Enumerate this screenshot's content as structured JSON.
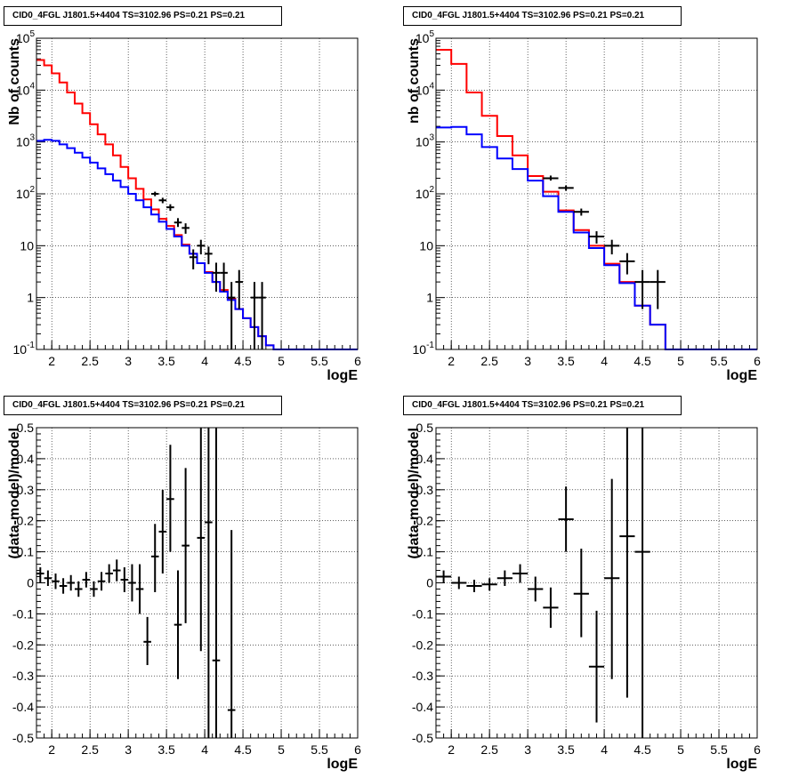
{
  "window": {
    "panel_title": "CID0_4FGL J1801.5+4404 TS=3102.96 PS=0.21 PS=0.21"
  },
  "colors": {
    "total_model": "#ff0000",
    "source_model": "#0000ff",
    "data": "#000000",
    "grid": "#000000"
  },
  "chart_data": [
    {
      "type": "line",
      "title": "CID0_4FGL J1801.5+4404 TS=3102.96 PS=0.21 PS=0.21",
      "xlabel": "logE",
      "ylabel": "Nb of counts",
      "xlim": [
        1.8,
        6.0
      ],
      "ylim": [
        0.1,
        100000
      ],
      "yscale": "log",
      "grid": true,
      "x_ticks": [
        2,
        2.5,
        3,
        3.5,
        4,
        4.5,
        5,
        5.5,
        6
      ],
      "y_ticks": [
        {
          "v": 0.1,
          "label": "10^-1"
        },
        {
          "v": 1,
          "label": "1"
        },
        {
          "v": 10,
          "label": "10"
        },
        {
          "v": 100,
          "label": "10^2"
        },
        {
          "v": 1000,
          "label": "10^3"
        },
        {
          "v": 10000,
          "label": "10^4"
        },
        {
          "v": 100000,
          "label": "10^5"
        }
      ],
      "bin_edges": [
        1.8,
        1.9,
        2.0,
        2.1,
        2.2,
        2.3,
        2.4,
        2.5,
        2.6,
        2.7,
        2.8,
        2.9,
        3.0,
        3.1,
        3.2,
        3.3,
        3.4,
        3.5,
        3.6,
        3.7,
        3.8,
        3.9,
        4.0,
        4.1,
        4.2,
        4.3,
        4.4,
        4.5,
        4.6,
        4.7,
        4.8,
        4.9,
        5.0,
        5.1,
        6.0
      ],
      "series": [
        {
          "role": "total_model",
          "values": [
            38000,
            30000,
            21000,
            14000,
            9000,
            5500,
            3600,
            2200,
            1400,
            900,
            550,
            330,
            200,
            125,
            78,
            50,
            33,
            24,
            16,
            10.5,
            7,
            4.6,
            3.1,
            2.0,
            1.4,
            0.95,
            0.6,
            0.4,
            0.27,
            0.18,
            0.12,
            0.1,
            0.1,
            0.1
          ]
        },
        {
          "role": "source_model",
          "values": [
            1050,
            1100,
            1050,
            900,
            760,
            620,
            500,
            400,
            310,
            240,
            180,
            135,
            100,
            75,
            55,
            40,
            29,
            21,
            15,
            10,
            7,
            4.6,
            3.0,
            2.0,
            1.3,
            0.9,
            0.6,
            0.4,
            0.27,
            0.18,
            0.12,
            0.1,
            0.1,
            0.1
          ]
        },
        {
          "role": "data",
          "points": [
            {
              "x": 3.35,
              "y": 100,
              "xerr": 0.05,
              "ylo": 90,
              "yhi": 110
            },
            {
              "x": 3.45,
              "y": 75,
              "xerr": 0.05,
              "ylo": 66,
              "yhi": 84
            },
            {
              "x": 3.55,
              "y": 55,
              "xerr": 0.05,
              "ylo": 47,
              "yhi": 63
            },
            {
              "x": 3.65,
              "y": 28,
              "xerr": 0.05,
              "ylo": 23,
              "yhi": 34
            },
            {
              "x": 3.75,
              "y": 22,
              "xerr": 0.05,
              "ylo": 17,
              "yhi": 27
            },
            {
              "x": 3.85,
              "y": 6,
              "xerr": 0.05,
              "ylo": 3.5,
              "yhi": 8.5
            },
            {
              "x": 3.95,
              "y": 10,
              "xerr": 0.05,
              "ylo": 6.8,
              "yhi": 13
            },
            {
              "x": 4.05,
              "y": 7,
              "xerr": 0.05,
              "ylo": 4.4,
              "yhi": 9.6
            },
            {
              "x": 4.15,
              "y": 3,
              "xerr": 0.05,
              "ylo": 1.3,
              "yhi": 4.7
            },
            {
              "x": 4.25,
              "y": 3,
              "xerr": 0.05,
              "ylo": 1.3,
              "yhi": 4.7
            },
            {
              "x": 4.35,
              "y": 1,
              "xerr": 0.05,
              "ylo": 0.1,
              "yhi": 2.0
            },
            {
              "x": 4.45,
              "y": 2,
              "xerr": 0.05,
              "ylo": 0.6,
              "yhi": 3.4
            },
            {
              "x": 4.65,
              "y": 1,
              "xerr": 0.05,
              "ylo": 0.1,
              "yhi": 2.0
            },
            {
              "x": 4.75,
              "y": 1,
              "xerr": 0.05,
              "ylo": 0.1,
              "yhi": 2.0
            }
          ]
        }
      ]
    },
    {
      "type": "line",
      "title": "CID0_4FGL J1801.5+4404 TS=3102.96 PS=0.21 PS=0.21",
      "xlabel": "logE",
      "ylabel": "nb of counts",
      "xlim": [
        1.8,
        6.0
      ],
      "ylim": [
        0.1,
        100000
      ],
      "yscale": "log",
      "grid": true,
      "x_ticks": [
        2,
        2.5,
        3,
        3.5,
        4,
        4.5,
        5,
        5.5,
        6
      ],
      "y_ticks": [
        {
          "v": 0.1,
          "label": "10^-1"
        },
        {
          "v": 1,
          "label": "1"
        },
        {
          "v": 10,
          "label": "10"
        },
        {
          "v": 100,
          "label": "10^2"
        },
        {
          "v": 1000,
          "label": "10^3"
        },
        {
          "v": 10000,
          "label": "10^4"
        },
        {
          "v": 100000,
          "label": "10^5"
        }
      ],
      "bin_edges": [
        1.8,
        2.0,
        2.2,
        2.4,
        2.6,
        2.8,
        3.0,
        3.2,
        3.4,
        3.6,
        3.8,
        4.0,
        4.2,
        4.4,
        4.6,
        4.8,
        5.0,
        6.0
      ],
      "series": [
        {
          "role": "total_model",
          "values": [
            60000,
            32000,
            9000,
            3200,
            1300,
            550,
            220,
            110,
            48,
            20,
            10,
            4.5,
            2,
            0.7,
            0.3,
            0.1,
            0.1
          ]
        },
        {
          "role": "source_model",
          "values": [
            1900,
            1950,
            1400,
            800,
            480,
            300,
            180,
            90,
            45,
            18,
            9,
            4.2,
            1.9,
            0.7,
            0.3,
            0.1,
            0.1
          ]
        },
        {
          "role": "data",
          "points": [
            {
              "x": 3.3,
              "y": 200,
              "xerr": 0.1,
              "ylo": 180,
              "yhi": 225
            },
            {
              "x": 3.5,
              "y": 130,
              "xerr": 0.1,
              "ylo": 115,
              "yhi": 145
            },
            {
              "x": 3.7,
              "y": 45,
              "xerr": 0.1,
              "ylo": 38,
              "yhi": 52
            },
            {
              "x": 3.9,
              "y": 15,
              "xerr": 0.1,
              "ylo": 11,
              "yhi": 19
            },
            {
              "x": 4.1,
              "y": 10,
              "xerr": 0.1,
              "ylo": 6.8,
              "yhi": 13
            },
            {
              "x": 4.3,
              "y": 5,
              "xerr": 0.1,
              "ylo": 2.8,
              "yhi": 7.2
            },
            {
              "x": 4.5,
              "y": 2,
              "xerr": 0.1,
              "ylo": 0.6,
              "yhi": 3.4
            },
            {
              "x": 4.7,
              "y": 2,
              "xerr": 0.1,
              "ylo": 0.6,
              "yhi": 3.4
            }
          ]
        }
      ]
    },
    {
      "type": "scatter",
      "title": "CID0_4FGL J1801.5+4404 TS=3102.96 PS=0.21 PS=0.21",
      "xlabel": "logE",
      "ylabel": "(data-model)/model",
      "xlim": [
        1.8,
        6.0
      ],
      "ylim": [
        -0.5,
        0.5
      ],
      "grid": true,
      "x_ticks": [
        2,
        2.5,
        3,
        3.5,
        4,
        4.5,
        5,
        5.5,
        6
      ],
      "y_ticks": [
        {
          "v": -0.5,
          "label": "-0.5"
        },
        {
          "v": -0.4,
          "label": "-0.4"
        },
        {
          "v": -0.3,
          "label": "-0.3"
        },
        {
          "v": -0.2,
          "label": "-0.2"
        },
        {
          "v": -0.1,
          "label": "-0.1"
        },
        {
          "v": 0,
          "label": "0"
        },
        {
          "v": 0.1,
          "label": "0.1"
        },
        {
          "v": 0.2,
          "label": "0.2"
        },
        {
          "v": 0.3,
          "label": "0.3"
        },
        {
          "v": 0.4,
          "label": "0.4"
        },
        {
          "v": 0.5,
          "label": "0.5"
        }
      ],
      "series": [
        {
          "role": "data",
          "points": [
            {
              "x": 1.85,
              "y": 0.03,
              "xerr": 0.05,
              "ylo": 0.0,
              "yhi": 0.05
            },
            {
              "x": 1.95,
              "y": 0.015,
              "xerr": 0.05,
              "ylo": -0.01,
              "yhi": 0.04
            },
            {
              "x": 2.05,
              "y": 0.005,
              "xerr": 0.05,
              "ylo": -0.02,
              "yhi": 0.03
            },
            {
              "x": 2.15,
              "y": -0.01,
              "xerr": 0.05,
              "ylo": -0.035,
              "yhi": 0.015
            },
            {
              "x": 2.25,
              "y": 0.0,
              "xerr": 0.05,
              "ylo": -0.025,
              "yhi": 0.025
            },
            {
              "x": 2.35,
              "y": -0.02,
              "xerr": 0.05,
              "ylo": -0.045,
              "yhi": 0.005
            },
            {
              "x": 2.45,
              "y": 0.01,
              "xerr": 0.05,
              "ylo": -0.015,
              "yhi": 0.035
            },
            {
              "x": 2.55,
              "y": -0.02,
              "xerr": 0.05,
              "ylo": -0.045,
              "yhi": 0.005
            },
            {
              "x": 2.65,
              "y": 0.005,
              "xerr": 0.05,
              "ylo": -0.025,
              "yhi": 0.035
            },
            {
              "x": 2.75,
              "y": 0.03,
              "xerr": 0.05,
              "ylo": 0.0,
              "yhi": 0.06
            },
            {
              "x": 2.85,
              "y": 0.04,
              "xerr": 0.05,
              "ylo": 0.005,
              "yhi": 0.075
            },
            {
              "x": 2.95,
              "y": 0.01,
              "xerr": 0.05,
              "ylo": -0.03,
              "yhi": 0.05
            },
            {
              "x": 3.05,
              "y": 0.0,
              "xerr": 0.05,
              "ylo": -0.06,
              "yhi": 0.06
            },
            {
              "x": 3.15,
              "y": -0.02,
              "xerr": 0.05,
              "ylo": -0.1,
              "yhi": 0.06
            },
            {
              "x": 3.25,
              "y": -0.19,
              "xerr": 0.05,
              "ylo": -0.265,
              "yhi": -0.11
            },
            {
              "x": 3.35,
              "y": 0.085,
              "xerr": 0.05,
              "ylo": -0.03,
              "yhi": 0.19
            },
            {
              "x": 3.45,
              "y": 0.165,
              "xerr": 0.05,
              "ylo": 0.03,
              "yhi": 0.3
            },
            {
              "x": 3.55,
              "y": 0.27,
              "xerr": 0.05,
              "ylo": 0.1,
              "yhi": 0.445
            },
            {
              "x": 3.65,
              "y": -0.135,
              "xerr": 0.05,
              "ylo": -0.31,
              "yhi": 0.04
            },
            {
              "x": 3.75,
              "y": 0.12,
              "xerr": 0.05,
              "ylo": -0.13,
              "yhi": 0.37
            },
            {
              "x": 3.95,
              "y": 0.145,
              "xerr": 0.05,
              "ylo": -0.22,
              "yhi": 0.5
            },
            {
              "x": 4.05,
              "y": 0.195,
              "xerr": 0.05,
              "ylo": -0.5,
              "yhi": 0.5
            },
            {
              "x": 4.15,
              "y": -0.25,
              "xerr": 0.05,
              "ylo": -0.5,
              "yhi": 0.5
            },
            {
              "x": 4.35,
              "y": -0.41,
              "xerr": 0.05,
              "ylo": -0.5,
              "yhi": 0.17
            }
          ]
        }
      ]
    },
    {
      "type": "scatter",
      "title": "CID0_4FGL J1801.5+4404 TS=3102.96 PS=0.21 PS=0.21",
      "xlabel": "logE",
      "ylabel": "(data-model)/model",
      "xlim": [
        1.8,
        6.0
      ],
      "ylim": [
        -0.5,
        0.5
      ],
      "grid": true,
      "x_ticks": [
        2,
        2.5,
        3,
        3.5,
        4,
        4.5,
        5,
        5.5,
        6
      ],
      "y_ticks": [
        {
          "v": -0.5,
          "label": "-0.5"
        },
        {
          "v": -0.4,
          "label": "-0.4"
        },
        {
          "v": -0.3,
          "label": "-0.3"
        },
        {
          "v": -0.2,
          "label": "-0.2"
        },
        {
          "v": -0.1,
          "label": "-0.1"
        },
        {
          "v": 0,
          "label": "0"
        },
        {
          "v": 0.1,
          "label": "0.1"
        },
        {
          "v": 0.2,
          "label": "0.2"
        },
        {
          "v": 0.3,
          "label": "0.3"
        },
        {
          "v": 0.4,
          "label": "0.4"
        },
        {
          "v": 0.5,
          "label": "0.5"
        }
      ],
      "series": [
        {
          "role": "data",
          "points": [
            {
              "x": 1.9,
              "y": 0.02,
              "xerr": 0.1,
              "ylo": 0.0,
              "yhi": 0.04
            },
            {
              "x": 2.1,
              "y": 0.0,
              "xerr": 0.1,
              "ylo": -0.02,
              "yhi": 0.02
            },
            {
              "x": 2.3,
              "y": -0.01,
              "xerr": 0.1,
              "ylo": -0.03,
              "yhi": 0.01
            },
            {
              "x": 2.5,
              "y": -0.005,
              "xerr": 0.1,
              "ylo": -0.025,
              "yhi": 0.015
            },
            {
              "x": 2.7,
              "y": 0.015,
              "xerr": 0.1,
              "ylo": -0.01,
              "yhi": 0.04
            },
            {
              "x": 2.9,
              "y": 0.03,
              "xerr": 0.1,
              "ylo": 0.0,
              "yhi": 0.06
            },
            {
              "x": 3.1,
              "y": -0.02,
              "xerr": 0.1,
              "ylo": -0.06,
              "yhi": 0.02
            },
            {
              "x": 3.3,
              "y": -0.08,
              "xerr": 0.1,
              "ylo": -0.145,
              "yhi": -0.015
            },
            {
              "x": 3.5,
              "y": 0.205,
              "xerr": 0.1,
              "ylo": 0.1,
              "yhi": 0.31
            },
            {
              "x": 3.7,
              "y": -0.035,
              "xerr": 0.1,
              "ylo": -0.175,
              "yhi": 0.11
            },
            {
              "x": 3.9,
              "y": -0.27,
              "xerr": 0.1,
              "ylo": -0.45,
              "yhi": -0.09
            },
            {
              "x": 4.1,
              "y": 0.015,
              "xerr": 0.1,
              "ylo": -0.31,
              "yhi": 0.335
            },
            {
              "x": 4.3,
              "y": 0.15,
              "xerr": 0.1,
              "ylo": -0.37,
              "yhi": 0.5
            },
            {
              "x": 4.5,
              "y": 0.1,
              "xerr": 0.1,
              "ylo": -0.5,
              "yhi": 0.5
            }
          ]
        }
      ]
    }
  ]
}
